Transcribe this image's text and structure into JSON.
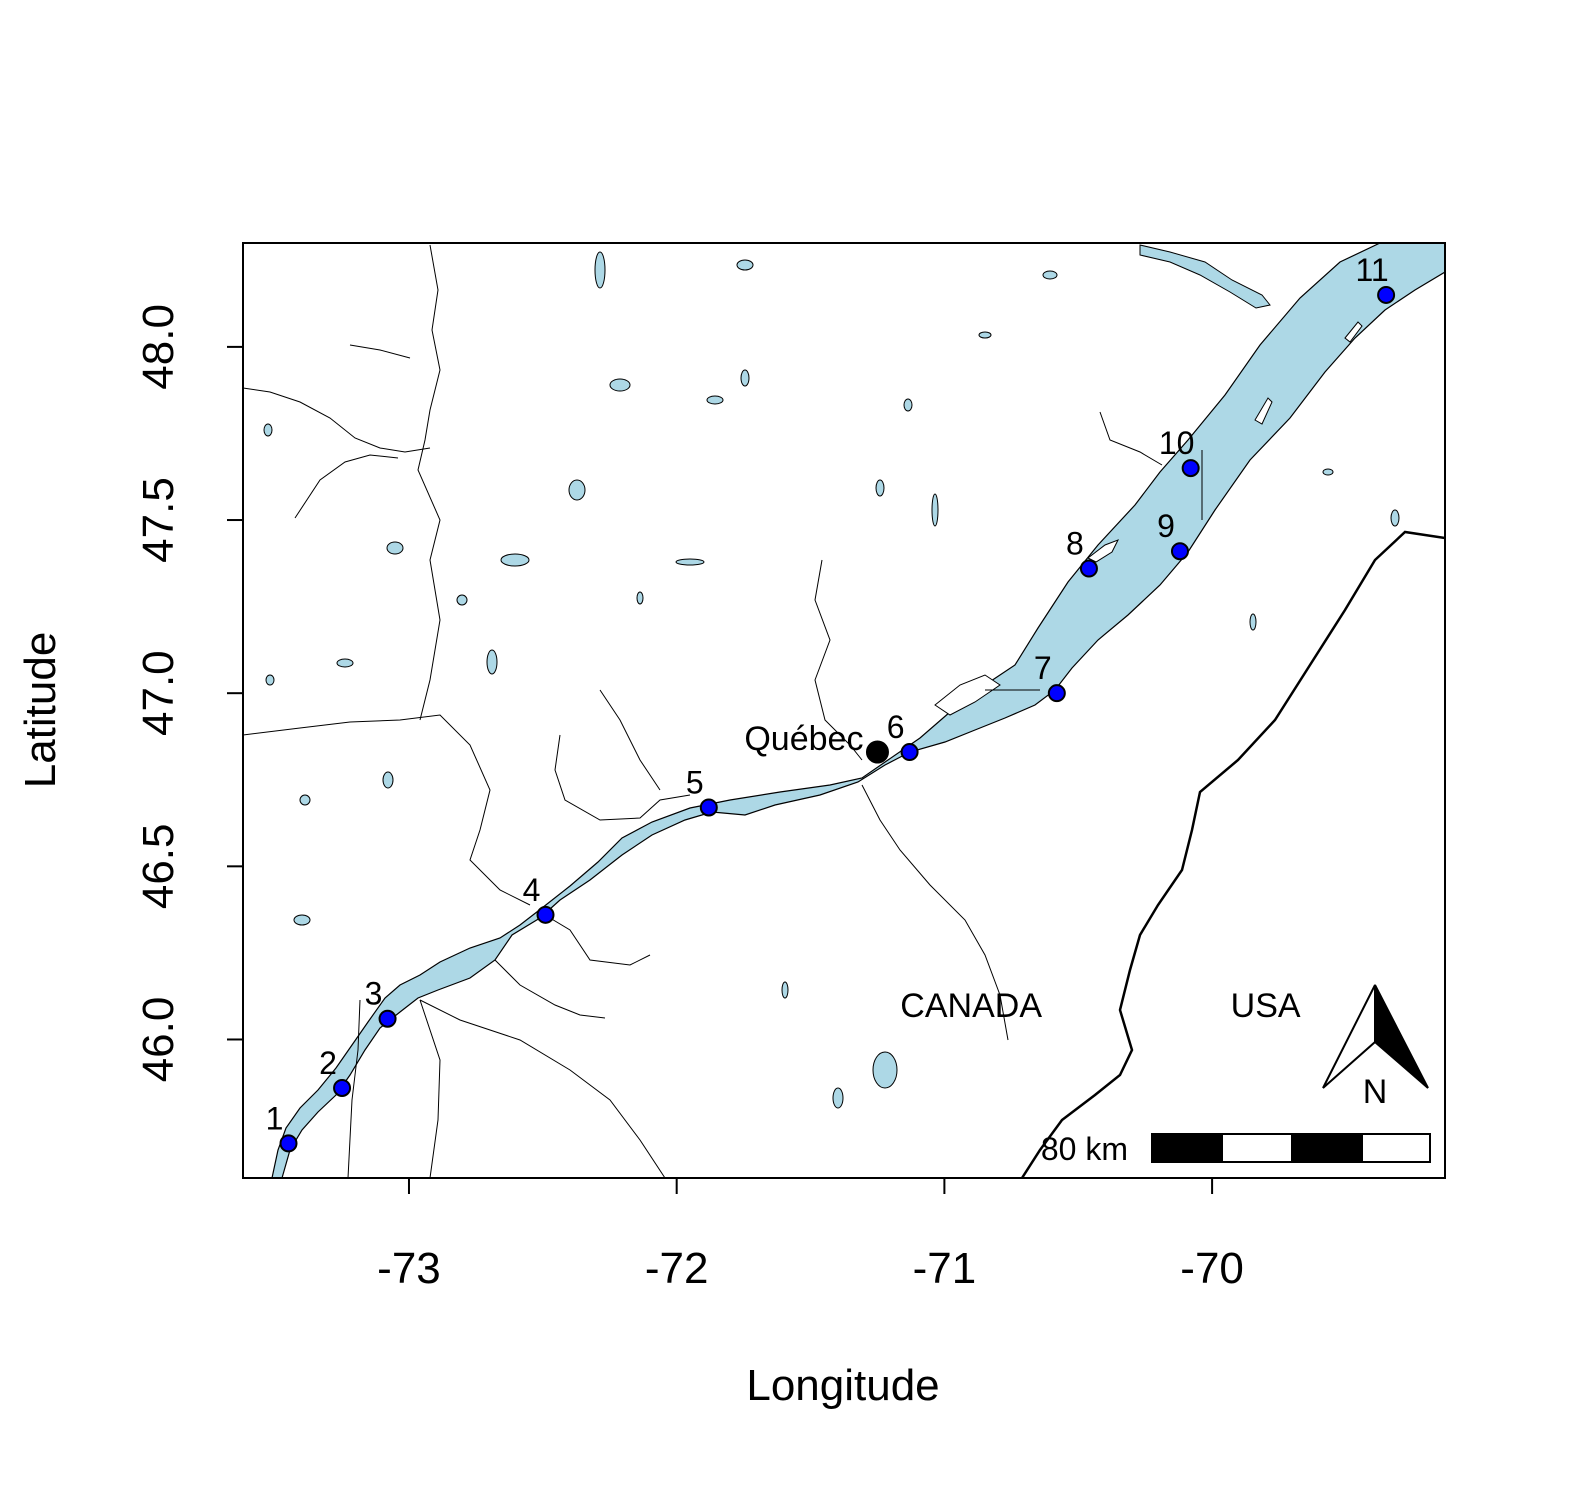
{
  "map": {
    "xlabel": "Longitude",
    "ylabel": "Latitude",
    "xlim": [
      -73.62,
      -69.13
    ],
    "ylim": [
      45.6,
      48.3
    ],
    "x_ticks": [
      -73,
      -72,
      -71,
      -70
    ],
    "y_ticks": [
      46.0,
      46.5,
      47.0,
      47.5,
      48.0
    ],
    "x_tick_labels": [
      "-73",
      "-72",
      "-71",
      "-70"
    ],
    "y_tick_labels": [
      "46.0",
      "46.5",
      "47.0",
      "47.5",
      "48.0"
    ],
    "colors": {
      "water": "#add8e6",
      "site_fill": "#0000ff",
      "city_fill": "#000000",
      "border": "#000000"
    },
    "sites": [
      {
        "id": "1",
        "lon": -73.45,
        "lat": 45.7
      },
      {
        "id": "2",
        "lon": -73.25,
        "lat": 45.86
      },
      {
        "id": "3",
        "lon": -73.08,
        "lat": 46.06
      },
      {
        "id": "4",
        "lon": -72.49,
        "lat": 46.36
      },
      {
        "id": "5",
        "lon": -71.88,
        "lat": 46.67
      },
      {
        "id": "6",
        "lon": -71.13,
        "lat": 46.83
      },
      {
        "id": "7",
        "lon": -70.58,
        "lat": 47.0
      },
      {
        "id": "8",
        "lon": -70.46,
        "lat": 47.36
      },
      {
        "id": "9",
        "lon": -70.12,
        "lat": 47.41
      },
      {
        "id": "10",
        "lon": -70.08,
        "lat": 47.65
      },
      {
        "id": "11",
        "lon": -69.35,
        "lat": 48.15
      }
    ],
    "city": {
      "name": "Québec",
      "lon": -71.25,
      "lat": 46.83
    },
    "region_labels": [
      {
        "name": "CANADA",
        "lon": -70.9,
        "lat": 46.1
      },
      {
        "name": "USA",
        "lon": -69.8,
        "lat": 46.1
      }
    ],
    "scale_bar": {
      "label": "80 km"
    },
    "north_arrow": {
      "label": "N"
    }
  }
}
